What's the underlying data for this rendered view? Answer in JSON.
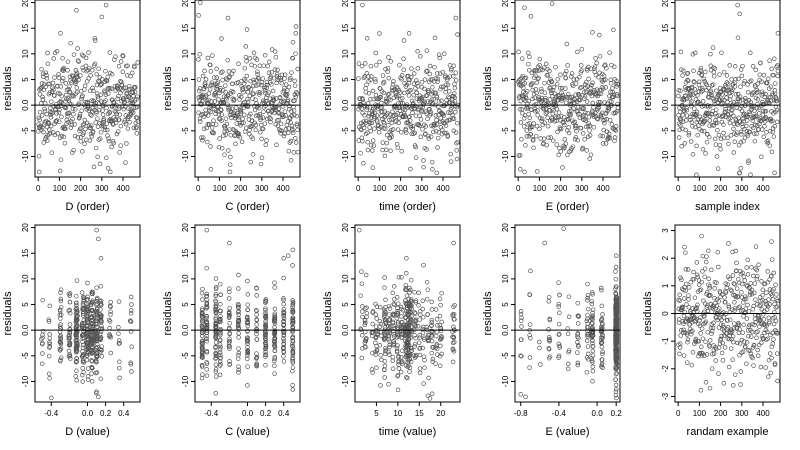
{
  "colors": {
    "points": "#555555",
    "axes": "#000000",
    "reference_line": "#000000"
  },
  "chart_data": [
    {
      "type": "scatter",
      "xlabel": "D (order)",
      "ylabel": "residuals",
      "xlim": [
        -15,
        480
      ],
      "ylim": [
        -14,
        20.5
      ],
      "xticks": [
        0,
        100,
        200,
        300,
        400
      ],
      "xtick_labels": [
        "0",
        "100",
        "200",
        "300",
        "400"
      ],
      "yticks": [
        -10,
        -5,
        0,
        5,
        10,
        15,
        20
      ],
      "ytick_labels": [
        "-10",
        "-5",
        "0.0",
        "5",
        "10",
        "15",
        "20"
      ],
      "reference_y": 0,
      "gen": {
        "kind": "index",
        "n": 470,
        "sd": 4.5,
        "seed": 11
      },
      "points": [
        [
          5,
          -13
        ],
        [
          180,
          18.5
        ],
        [
          300,
          17.2
        ],
        [
          320,
          19.5
        ],
        [
          330,
          -12.3
        ],
        [
          340,
          -13
        ],
        [
          105,
          14
        ]
      ]
    },
    {
      "type": "scatter",
      "xlabel": "C (order)",
      "ylabel": "residuals",
      "xlim": [
        -15,
        480
      ],
      "ylim": [
        -14,
        20.5
      ],
      "xticks": [
        0,
        100,
        200,
        300,
        400
      ],
      "xtick_labels": [
        "0",
        "100",
        "200",
        "300",
        "400"
      ],
      "yticks": [
        -10,
        -5,
        0,
        5,
        10,
        15,
        20
      ],
      "ytick_labels": [
        "-10",
        "-5",
        "0.0",
        "5",
        "10",
        "15",
        "20"
      ],
      "reference_y": 0,
      "gen": {
        "kind": "index",
        "n": 470,
        "sd": 4.5,
        "seed": 23
      },
      "points": [
        [
          2,
          17.5
        ],
        [
          10,
          20
        ],
        [
          140,
          17
        ],
        [
          60,
          -12.5
        ],
        [
          150,
          -13
        ],
        [
          110,
          13
        ],
        [
          460,
          14
        ]
      ]
    },
    {
      "type": "scatter",
      "xlabel": "time (order)",
      "ylabel": "residuals",
      "xlim": [
        -15,
        480
      ],
      "ylim": [
        -14,
        20.5
      ],
      "xticks": [
        0,
        100,
        200,
        300,
        400
      ],
      "xtick_labels": [
        "0",
        "100",
        "200",
        "300",
        "400"
      ],
      "yticks": [
        -10,
        -5,
        0,
        5,
        10,
        15,
        20
      ],
      "ytick_labels": [
        "-10",
        "-5",
        "0.0",
        "5",
        "10",
        "15",
        "20"
      ],
      "reference_y": 0,
      "gen": {
        "kind": "index",
        "n": 470,
        "sd": 4.5,
        "seed": 37
      },
      "points": [
        [
          20,
          19.5
        ],
        [
          460,
          17
        ],
        [
          350,
          -12.5
        ],
        [
          370,
          -13.2
        ],
        [
          240,
          14
        ]
      ]
    },
    {
      "type": "scatter",
      "xlabel": "E (order)",
      "ylabel": "residuals",
      "xlim": [
        -15,
        480
      ],
      "ylim": [
        -14,
        20.5
      ],
      "xticks": [
        0,
        100,
        200,
        300,
        400
      ],
      "xtick_labels": [
        "0",
        "100",
        "200",
        "300",
        "400"
      ],
      "yticks": [
        -10,
        -5,
        0,
        5,
        10,
        15,
        20
      ],
      "ytick_labels": [
        "-10",
        "-5",
        "0.0",
        "5",
        "10",
        "15",
        "20"
      ],
      "reference_y": 0,
      "gen": {
        "kind": "index",
        "n": 470,
        "sd": 4.5,
        "seed": 53
      },
      "points": [
        [
          30,
          19
        ],
        [
          60,
          17.3
        ],
        [
          10,
          -12.5
        ],
        [
          30,
          -13
        ],
        [
          160,
          19.8
        ],
        [
          350,
          14.2
        ]
      ]
    },
    {
      "type": "scatter",
      "xlabel": "sample index",
      "ylabel": "residuals",
      "xlim": [
        -15,
        480
      ],
      "ylim": [
        -14,
        20.5
      ],
      "xticks": [
        0,
        100,
        200,
        300,
        400
      ],
      "xtick_labels": [
        "0",
        "100",
        "200",
        "300",
        "400"
      ],
      "yticks": [
        -10,
        -5,
        0,
        5,
        10,
        15,
        20
      ],
      "ytick_labels": [
        "-10",
        "-5",
        "0.0",
        "5",
        "10",
        "15",
        "20"
      ],
      "reference_y": 0,
      "gen": {
        "kind": "index",
        "n": 470,
        "sd": 4.5,
        "seed": 71
      },
      "points": [
        [
          280,
          19.5
        ],
        [
          290,
          17.8
        ],
        [
          295,
          -12.3
        ],
        [
          290,
          -13.2
        ],
        [
          470,
          14
        ]
      ]
    },
    {
      "type": "scatter",
      "xlabel": "D (value)",
      "ylabel": "residuals",
      "xlim": [
        -0.58,
        0.58
      ],
      "ylim": [
        -14,
        20.5
      ],
      "xticks": [
        -0.4,
        0,
        0.2,
        0.4
      ],
      "xtick_labels": [
        "-0.4",
        "0.0",
        "0.2",
        "0.4"
      ],
      "yticks": [
        -10,
        -5,
        0,
        5,
        10,
        15,
        20
      ],
      "ytick_labels": [
        "-10",
        "-5",
        "0.0",
        "5",
        "10",
        "15",
        "20"
      ],
      "reference_y": 0,
      "gen": {
        "kind": "columns",
        "n": 470,
        "sd": 4.2,
        "seed": 101,
        "jitter": 0.01,
        "weights": [
          1,
          1,
          2,
          3,
          5,
          5,
          6,
          6,
          5,
          3,
          2,
          1,
          1
        ],
        "columns": [
          -0.5,
          -0.42,
          -0.3,
          -0.2,
          -0.12,
          -0.05,
          0,
          0.05,
          0.1,
          0.15,
          0.25,
          0.35,
          0.48
        ]
      },
      "points": [
        [
          0.1,
          19.5
        ],
        [
          0.12,
          17.8
        ],
        [
          0.1,
          -12
        ],
        [
          0.12,
          -13
        ],
        [
          -0.4,
          -13.2
        ],
        [
          0.15,
          14
        ]
      ]
    },
    {
      "type": "scatter",
      "xlabel": "C (value)",
      "ylabel": "residuals",
      "xlim": [
        -0.58,
        0.58
      ],
      "ylim": [
        -14,
        20.5
      ],
      "xticks": [
        -0.4,
        0,
        0.2,
        0.4
      ],
      "xtick_labels": [
        "-0.4",
        "0.0",
        "0.2",
        "0.4"
      ],
      "yticks": [
        -10,
        -5,
        0,
        5,
        10,
        15,
        20
      ],
      "ytick_labels": [
        "-10",
        "-5",
        "0.0",
        "5",
        "10",
        "15",
        "20"
      ],
      "reference_y": 0,
      "gen": {
        "kind": "columns",
        "n": 470,
        "sd": 4.2,
        "seed": 131,
        "jitter": 0.004,
        "weights": [
          3,
          2,
          3,
          2,
          2,
          3,
          2,
          2,
          3,
          3,
          3,
          4
        ],
        "columns": [
          -0.5,
          -0.45,
          -0.35,
          -0.3,
          -0.2,
          -0.1,
          0,
          0.1,
          0.2,
          0.3,
          0.4,
          0.5
        ]
      },
      "points": [
        [
          -0.45,
          19.5
        ],
        [
          -0.2,
          17
        ],
        [
          -0.35,
          -12.3
        ],
        [
          0.4,
          14
        ],
        [
          0.45,
          14.5
        ]
      ]
    },
    {
      "type": "scatter",
      "xlabel": "time (value)",
      "ylabel": "residuals",
      "xlim": [
        0,
        24.5
      ],
      "ylim": [
        -14,
        20.5
      ],
      "xticks": [
        5,
        10,
        15,
        20
      ],
      "xtick_labels": [
        "5",
        "10",
        "15",
        "20"
      ],
      "yticks": [
        -10,
        -5,
        0,
        5,
        10,
        15,
        20
      ],
      "ytick_labels": [
        "-10",
        "-5",
        "0.0",
        "5",
        "10",
        "15",
        "20"
      ],
      "reference_y": 0,
      "gen": {
        "kind": "columns",
        "n": 470,
        "sd": 4.2,
        "seed": 151,
        "jitter": 0.25,
        "weights": [
          1,
          2,
          1,
          2,
          2,
          3,
          2,
          3,
          4,
          2,
          6,
          6,
          4,
          3,
          2,
          2,
          2,
          2,
          1,
          2,
          3
        ],
        "columns": [
          1.5,
          2.5,
          4,
          5,
          6,
          7,
          8,
          9,
          10,
          11,
          12,
          12.5,
          13,
          14,
          15,
          16,
          17,
          18,
          19,
          20,
          23
        ]
      },
      "points": [
        [
          1,
          19.5
        ],
        [
          23,
          17
        ],
        [
          17,
          -12.8
        ],
        [
          17.5,
          -13.3
        ],
        [
          12,
          14
        ]
      ]
    },
    {
      "type": "scatter",
      "xlabel": "E (value)",
      "ylabel": "residuals",
      "xlim": [
        -0.86,
        0.24
      ],
      "ylim": [
        -14,
        20.5
      ],
      "xticks": [
        -0.8,
        -0.4,
        0,
        0.2
      ],
      "xtick_labels": [
        "-0.8",
        "-0.4",
        "0.0",
        "0.2"
      ],
      "yticks": [
        -10,
        -5,
        0,
        5,
        10,
        15,
        20
      ],
      "ytick_labels": [
        "-10",
        "-5",
        "0.0",
        "5",
        "10",
        "15",
        "20"
      ],
      "reference_y": 0,
      "gen": {
        "kind": "columns",
        "n": 470,
        "sd": 4.2,
        "seed": 181,
        "jitter": 0.008,
        "weights": [
          1,
          1,
          1,
          1,
          2,
          1,
          2,
          2,
          3,
          3,
          30
        ],
        "columns": [
          -0.8,
          -0.7,
          -0.6,
          -0.5,
          -0.4,
          -0.3,
          -0.2,
          -0.1,
          -0.05,
          0.05,
          0.2
        ]
      },
      "points": [
        [
          -0.35,
          19.8
        ],
        [
          -0.55,
          17
        ],
        [
          -0.8,
          -12.5
        ],
        [
          -0.75,
          -13
        ],
        [
          0.2,
          14.5
        ]
      ]
    },
    {
      "type": "scatter",
      "xlabel": "randam example",
      "ylabel": "residuals",
      "xlim": [
        -15,
        480
      ],
      "ylim": [
        -3.2,
        3.2
      ],
      "xticks": [
        0,
        100,
        200,
        300,
        400
      ],
      "xtick_labels": [
        "0",
        "100",
        "200",
        "300",
        "400"
      ],
      "yticks": [
        -3,
        -2,
        -1,
        0,
        1,
        2,
        3
      ],
      "ytick_labels": [
        "-3",
        "-2",
        "-1",
        "0",
        "1",
        "2",
        "3"
      ],
      "reference_y": 0,
      "gen": {
        "kind": "index",
        "n": 470,
        "sd": 1.0,
        "seed": 211
      },
      "points": [
        [
          110,
          2.8
        ],
        [
          150,
          -2.7
        ],
        [
          260,
          -2.6
        ],
        [
          440,
          2.6
        ],
        [
          30,
          2.4
        ]
      ]
    }
  ]
}
